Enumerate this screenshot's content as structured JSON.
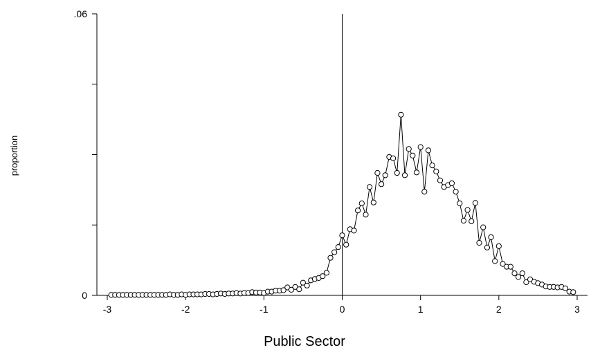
{
  "chart_data": {
    "type": "line",
    "title": "",
    "xlabel": "Public Sector",
    "ylabel": "proportion",
    "xlim": [
      -3,
      3
    ],
    "ylim": [
      0,
      0.06
    ],
    "grid": false,
    "x_ticks": [
      -3,
      -2,
      -1,
      0,
      1,
      2,
      3
    ],
    "x_tick_labels": [
      "-3",
      "-2",
      "-1",
      "0",
      "1",
      "2",
      "3"
    ],
    "y_ticks": [
      0,
      0.015,
      0.03,
      0.045,
      0.06
    ],
    "y_tick_labels": [
      "0",
      "",
      "",
      "",
      ".06"
    ],
    "reference_line_x": 0,
    "colors": {
      "line": "#000000",
      "marker_fill": "#ffffff",
      "marker_stroke": "#000000"
    },
    "series": [
      {
        "x": [
          -2.95,
          -2.9,
          -2.85,
          -2.8,
          -2.75,
          -2.7,
          -2.65,
          -2.6,
          -2.55,
          -2.5,
          -2.45,
          -2.4,
          -2.35,
          -2.3,
          -2.25,
          -2.2,
          -2.15,
          -2.1,
          -2.05,
          -2.0,
          -1.95,
          -1.9,
          -1.85,
          -1.8,
          -1.75,
          -1.7,
          -1.65,
          -1.6,
          -1.55,
          -1.5,
          -1.45,
          -1.4,
          -1.35,
          -1.3,
          -1.25,
          -1.2,
          -1.15,
          -1.1,
          -1.05,
          -1.0,
          -0.95,
          -0.9,
          -0.85,
          -0.8,
          -0.75,
          -0.7,
          -0.65,
          -0.6,
          -0.55,
          -0.5,
          -0.45,
          -0.4,
          -0.35,
          -0.3,
          -0.25,
          -0.2,
          -0.15,
          -0.1,
          -0.05,
          0.0,
          0.05,
          0.1,
          0.15,
          0.2,
          0.25,
          0.3,
          0.35,
          0.4,
          0.45,
          0.5,
          0.55,
          0.6,
          0.65,
          0.7,
          0.75,
          0.8,
          0.85,
          0.9,
          0.95,
          1.0,
          1.05,
          1.1,
          1.15,
          1.2,
          1.25,
          1.3,
          1.35,
          1.4,
          1.45,
          1.5,
          1.55,
          1.6,
          1.65,
          1.7,
          1.75,
          1.8,
          1.85,
          1.9,
          1.95,
          2.0,
          2.05,
          2.1,
          2.15,
          2.2,
          2.25,
          2.3,
          2.35,
          2.4,
          2.45,
          2.5,
          2.55,
          2.6,
          2.65,
          2.7,
          2.75,
          2.8,
          2.85,
          2.9,
          2.95
        ],
        "y": [
          0.0001,
          0.0001,
          0.0001,
          0.0001,
          0.0001,
          0.0001,
          0.0001,
          0.0001,
          0.0001,
          0.0001,
          0.0001,
          0.0001,
          0.0001,
          0.0001,
          0.0001,
          0.0002,
          0.0001,
          0.0001,
          0.0002,
          0.0001,
          0.0002,
          0.0002,
          0.0002,
          0.0002,
          0.0003,
          0.0003,
          0.0002,
          0.0003,
          0.0004,
          0.0003,
          0.0004,
          0.0004,
          0.0005,
          0.0004,
          0.0005,
          0.0005,
          0.0007,
          0.0006,
          0.0006,
          0.0005,
          0.0008,
          0.0008,
          0.001,
          0.001,
          0.0011,
          0.0017,
          0.0012,
          0.0018,
          0.0013,
          0.0027,
          0.0021,
          0.0032,
          0.0035,
          0.0037,
          0.0041,
          0.0048,
          0.008,
          0.0092,
          0.0103,
          0.0128,
          0.0108,
          0.0141,
          0.0138,
          0.0181,
          0.0196,
          0.0172,
          0.0231,
          0.0198,
          0.0261,
          0.0237,
          0.0256,
          0.0295,
          0.0292,
          0.0261,
          0.0385,
          0.0256,
          0.0312,
          0.0298,
          0.0262,
          0.0316,
          0.0221,
          0.0309,
          0.0277,
          0.0264,
          0.0245,
          0.0231,
          0.0235,
          0.0239,
          0.0221,
          0.0196,
          0.0159,
          0.0182,
          0.0158,
          0.0197,
          0.0112,
          0.0145,
          0.0102,
          0.0124,
          0.0073,
          0.0105,
          0.0067,
          0.0061,
          0.0061,
          0.0047,
          0.0039,
          0.0047,
          0.0028,
          0.0034,
          0.0029,
          0.0026,
          0.0023,
          0.0019,
          0.0018,
          0.0018,
          0.0017,
          0.0018,
          0.0015,
          0.0008,
          0.0007
        ]
      }
    ]
  }
}
